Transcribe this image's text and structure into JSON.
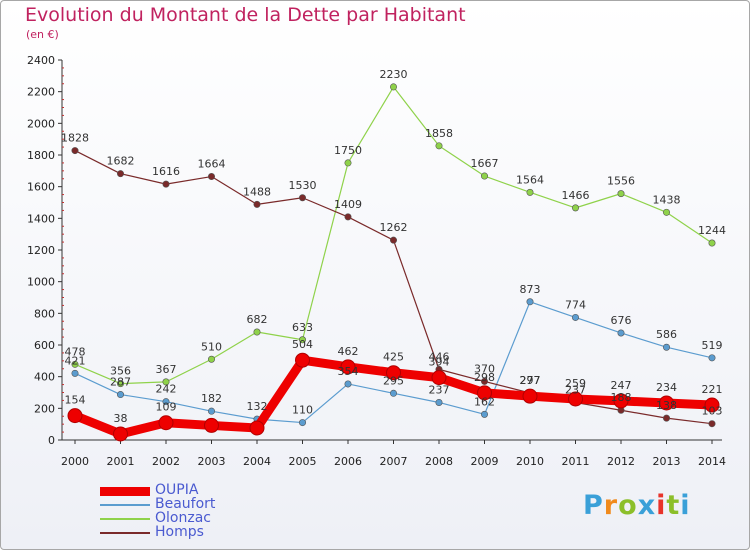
{
  "header": {
    "title": "Evolution du Montant de la Dette par Habitant",
    "subtitle": "(en €)"
  },
  "brand": {
    "logo_text": "Proxiti",
    "logo_colors": [
      "#3aa0d8",
      "#f08a1c",
      "#8cbf2a",
      "#3aa0d8",
      "#e8332a",
      "#8cbf2a",
      "#3aa0d8"
    ]
  },
  "chart_data": {
    "type": "line",
    "x": [
      "2000",
      "2001",
      "2002",
      "2003",
      "2004",
      "2005",
      "2006",
      "2007",
      "2008",
      "2009",
      "2010",
      "2011",
      "2012",
      "2013",
      "2014"
    ],
    "ylim": [
      0,
      2400
    ],
    "yticks": [
      0,
      200,
      400,
      600,
      800,
      1000,
      1200,
      1400,
      1600,
      1800,
      2000,
      2200,
      2400
    ],
    "grid": false,
    "legend_position": "bottom-left",
    "series": [
      {
        "name": "OUPIA",
        "color": "#ee0000",
        "emphasis": true,
        "values": [
          154,
          38,
          109,
          92,
          76,
          504,
          462,
          425,
          394,
          298,
          277,
          259,
          247,
          234,
          221
        ],
        "labels": [
          "154",
          "38",
          "109",
          "",
          "",
          "504",
          "462",
          "425",
          "394",
          "298",
          "277",
          "259",
          "247",
          "234",
          "221"
        ]
      },
      {
        "name": "Beaufort",
        "color": "#5b9ccf",
        "values": [
          421,
          287,
          242,
          182,
          132,
          110,
          354,
          295,
          237,
          162,
          873,
          774,
          676,
          586,
          519
        ],
        "labels": [
          "421",
          "287",
          "242",
          "182",
          "132",
          "110",
          "354",
          "295",
          "237",
          "162",
          "873",
          "774",
          "676",
          "586",
          "519"
        ]
      },
      {
        "name": "Olonzac",
        "color": "#8fd24a",
        "values": [
          478,
          356,
          367,
          510,
          682,
          633,
          1750,
          2230,
          1858,
          1667,
          1564,
          1466,
          1556,
          1438,
          1244
        ],
        "labels": [
          "478",
          "356",
          "367",
          "510",
          "682",
          "633",
          "1750",
          "2230",
          "1858",
          "1667",
          "1564",
          "1466",
          "1556",
          "1438",
          "1244"
        ]
      },
      {
        "name": "Homps",
        "color": "#7a2a2a",
        "values": [
          1828,
          1682,
          1616,
          1664,
          1488,
          1530,
          1409,
          1262,
          446,
          370,
          297,
          237,
          188,
          138,
          103
        ],
        "labels": [
          "1828",
          "1682",
          "1616",
          "1664",
          "1488",
          "1530",
          "1409",
          "1262",
          "446",
          "370",
          "297",
          "237",
          "188",
          "138",
          "103"
        ]
      }
    ]
  }
}
